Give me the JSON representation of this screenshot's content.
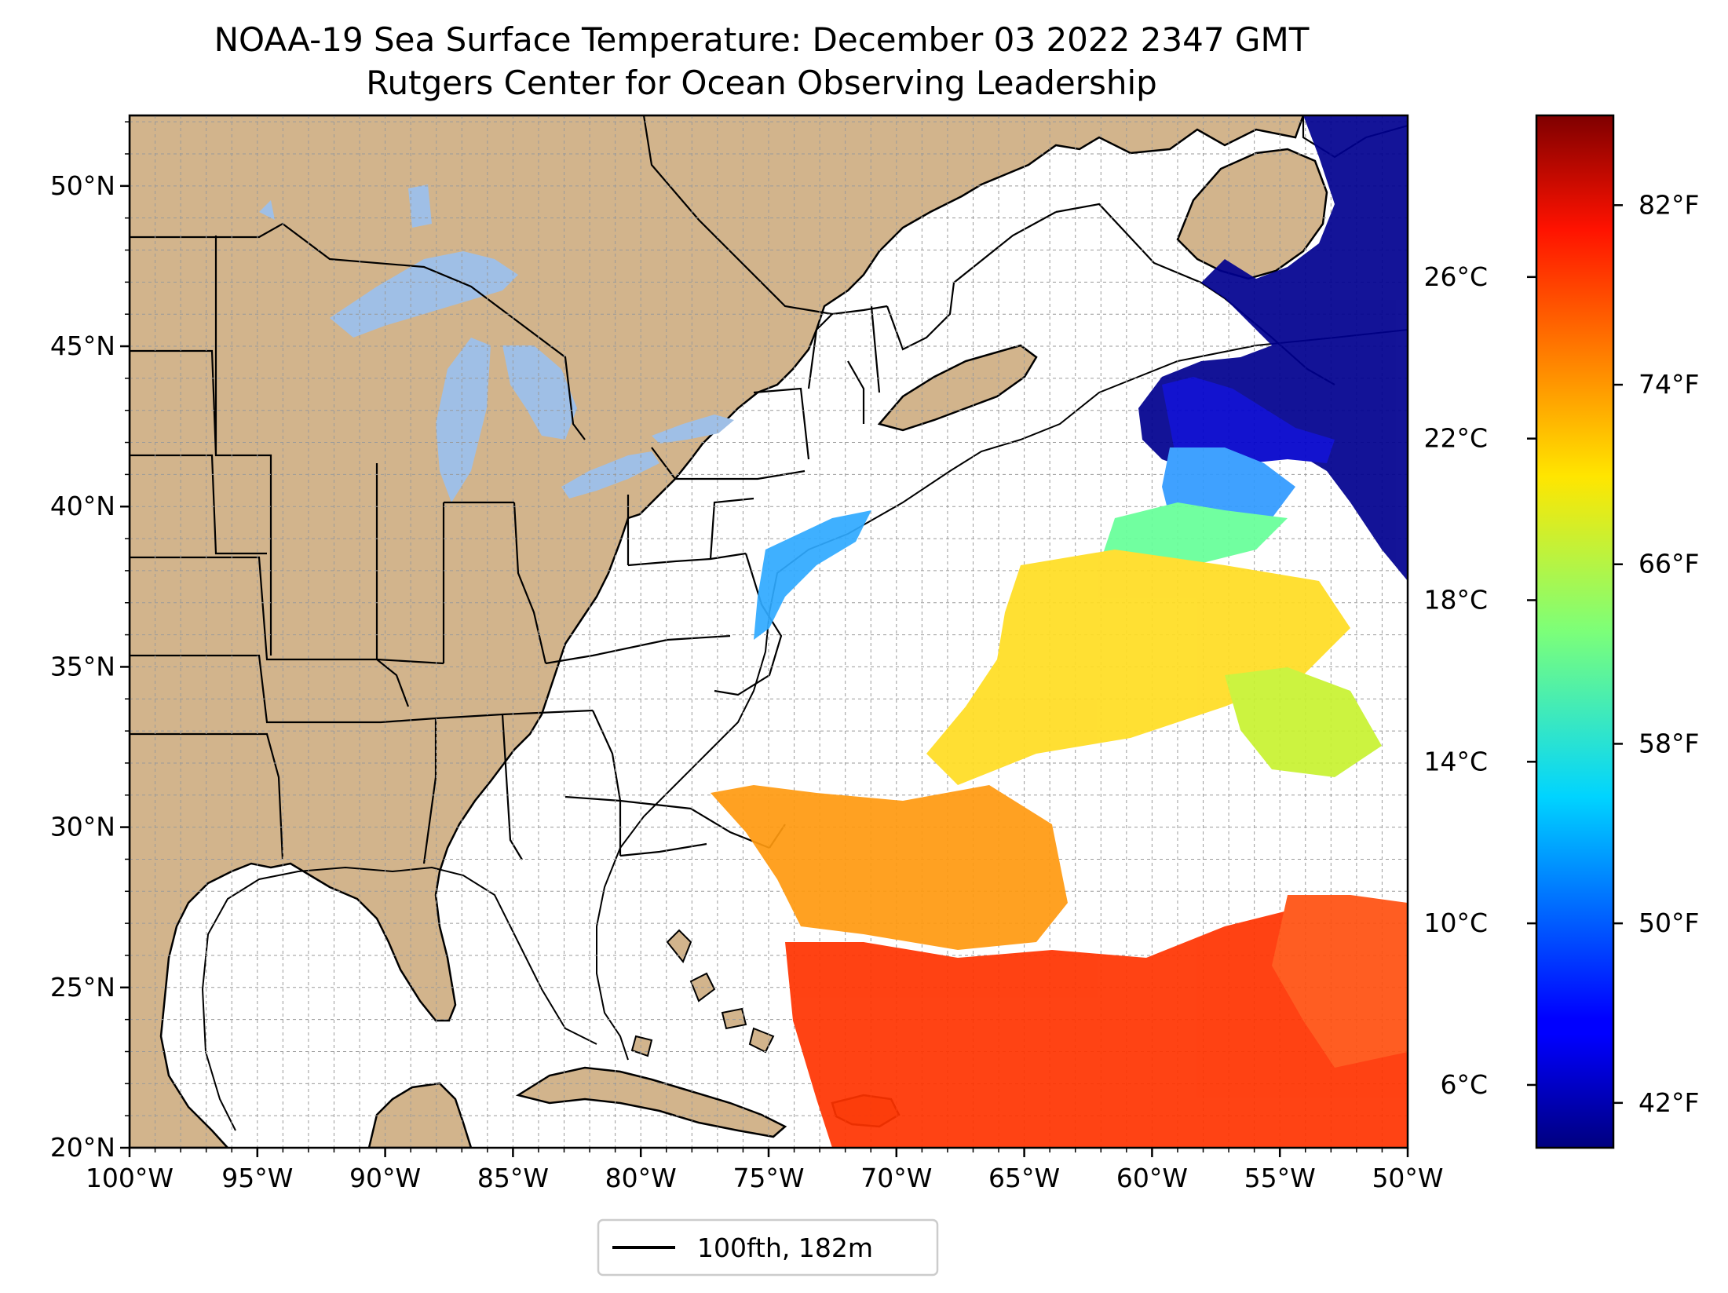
{
  "title": "NOAA-19 Sea Surface Temperature: December 03 2022 2347 GMT",
  "subtitle": "Rutgers Center for Ocean Observing Leadership",
  "map": {
    "extent": {
      "lon_min": -100,
      "lon_max": -50,
      "lat_min": 20,
      "lat_max": 52.2
    },
    "x_ticks": [
      {
        "value": -100,
        "label": "100°W"
      },
      {
        "value": -95,
        "label": "95°W"
      },
      {
        "value": -90,
        "label": "90°W"
      },
      {
        "value": -85,
        "label": "85°W"
      },
      {
        "value": -80,
        "label": "80°W"
      },
      {
        "value": -75,
        "label": "75°W"
      },
      {
        "value": -70,
        "label": "70°W"
      },
      {
        "value": -65,
        "label": "65°W"
      },
      {
        "value": -60,
        "label": "60°W"
      },
      {
        "value": -55,
        "label": "55°W"
      },
      {
        "value": -50,
        "label": "50°W"
      }
    ],
    "y_ticks": [
      {
        "value": 20,
        "label": "20°N"
      },
      {
        "value": 25,
        "label": "25°N"
      },
      {
        "value": 30,
        "label": "30°N"
      },
      {
        "value": 35,
        "label": "35°N"
      },
      {
        "value": 40,
        "label": "40°N"
      },
      {
        "value": 45,
        "label": "45°N"
      },
      {
        "value": 50,
        "label": "50°N"
      }
    ],
    "grid": true,
    "colors": {
      "land": "#d2b48c",
      "lakes": "#9fbfe6",
      "ocean": "#ffffff",
      "coast": "#000000",
      "grid": "#b0b0b0"
    }
  },
  "legend": {
    "label": "100fth, 182m",
    "placement": "below-center"
  },
  "colorbar": {
    "colormap": "jet",
    "range_f": [
      40,
      86
    ],
    "fahrenheit_ticks": [
      {
        "value": 42,
        "label": "42°F"
      },
      {
        "value": 50,
        "label": "50°F"
      },
      {
        "value": 58,
        "label": "58°F"
      },
      {
        "value": 66,
        "label": "66°F"
      },
      {
        "value": 74,
        "label": "74°F"
      },
      {
        "value": 82,
        "label": "82°F"
      }
    ],
    "celsius_ticks": [
      {
        "value": 6,
        "label": "6°C"
      },
      {
        "value": 10,
        "label": "10°C"
      },
      {
        "value": 14,
        "label": "14°C"
      },
      {
        "value": 18,
        "label": "18°C"
      },
      {
        "value": 22,
        "label": "22°C"
      },
      {
        "value": 26,
        "label": "26°C"
      }
    ]
  }
}
